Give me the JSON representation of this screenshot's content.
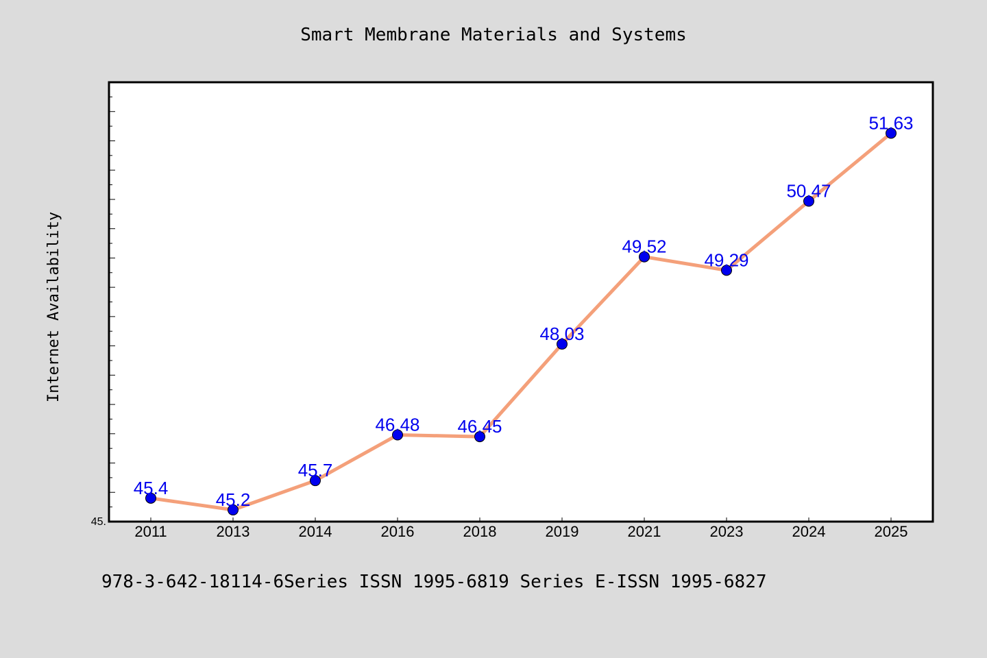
{
  "chart_data": {
    "type": "line",
    "title": "Smart Membrane Materials and Systems",
    "xlabel": "",
    "ylabel": "Internet Availability",
    "categories": [
      "2011",
      "2013",
      "2014",
      "2016",
      "2018",
      "2019",
      "2021",
      "2023",
      "2024",
      "2025"
    ],
    "values": [
      45.4,
      45.2,
      45.7,
      46.48,
      46.45,
      48.03,
      49.52,
      49.29,
      50.47,
      51.63
    ],
    "data_labels": [
      "45.4",
      "45.2",
      "45.7",
      "46.48",
      "46.45",
      "48.03",
      "49.52",
      "49.29",
      "50.47",
      "51.63"
    ],
    "y_tick_labels": [
      "45."
    ],
    "ylim": [
      45.0,
      52.5
    ],
    "grid": false,
    "colors": {
      "line": "#f4a07a",
      "marker": "#0000ee",
      "label": "#0000ee",
      "background": "#dcdcdc",
      "plot_background": "#ffffff"
    }
  },
  "footer": {
    "text": "978-3-642-18114-6Series ISSN 1995-6819 Series E-ISSN 1995-6827"
  }
}
